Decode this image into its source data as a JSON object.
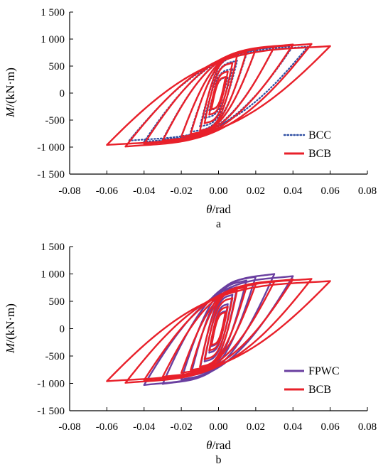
{
  "chart_data": [
    {
      "panel_label": "a",
      "type": "line",
      "xlabel_var": "θ",
      "xlabel_unit": "/rad",
      "ylabel_var": "M",
      "ylabel_unit": "/(kN·m)",
      "xlim": [
        -0.08,
        0.08
      ],
      "ylim": [
        -1500,
        1500
      ],
      "x_ticks": [
        -0.08,
        -0.06,
        -0.04,
        -0.02,
        0.0,
        0.02,
        0.04,
        0.06,
        0.08
      ],
      "x_tick_labels": [
        "-0.08",
        "-0.06",
        "-0.04",
        "-0.02",
        "0.00",
        "0.02",
        "0.04",
        "0.06",
        "0.08"
      ],
      "y_ticks": [
        1500,
        1000,
        500,
        0,
        -500,
        -1000,
        -1500
      ],
      "y_tick_labels": [
        "1 500",
        "1 000",
        "500",
        "0",
        "-500",
        "-1 000",
        "-1 500"
      ],
      "grid": false,
      "legend_position": "bottom-right",
      "series": [
        {
          "name": "BCC",
          "style": "dotted",
          "color": "#2f4fa3",
          "loops": [
            {
              "amp": 0.005,
              "m_pos": 300,
              "m_neg": -320
            },
            {
              "amp": 0.0075,
              "m_pos": 450,
              "m_neg": -460
            },
            {
              "amp": 0.01,
              "m_pos": 600,
              "m_neg": -620
            },
            {
              "amp": 0.015,
              "m_pos": 720,
              "m_neg": -720
            },
            {
              "amp": 0.02,
              "m_pos": 800,
              "m_neg": -800
            },
            {
              "amp": 0.03,
              "m_pos": 850,
              "m_neg": -860
            },
            {
              "amp": 0.04,
              "m_pos": 870,
              "m_neg": -900
            },
            {
              "amp": 0.048,
              "m_pos": 860,
              "m_neg": -880
            }
          ]
        },
        {
          "name": "BCB",
          "style": "solid",
          "color": "#e8202a",
          "loops": [
            {
              "amp": 0.0038,
              "m_pos": 300,
              "m_neg": -300
            },
            {
              "amp": 0.005,
              "m_pos": 400,
              "m_neg": -400
            },
            {
              "amp": 0.0075,
              "m_pos": 560,
              "m_neg": -560
            },
            {
              "amp": 0.01,
              "m_pos": 700,
              "m_neg": -700
            },
            {
              "amp": 0.015,
              "m_pos": 760,
              "m_neg": -760
            },
            {
              "amp": 0.02,
              "m_pos": 810,
              "m_neg": -810
            },
            {
              "amp": 0.03,
              "m_pos": 860,
              "m_neg": -880
            },
            {
              "amp": 0.04,
              "m_pos": 900,
              "m_neg": -940
            },
            {
              "amp": 0.05,
              "m_pos": 910,
              "m_neg": -990
            },
            {
              "amp": 0.06,
              "m_pos": 870,
              "m_neg": -960
            }
          ]
        }
      ]
    },
    {
      "panel_label": "b",
      "type": "line",
      "xlabel_var": "θ",
      "xlabel_unit": "/rad",
      "ylabel_var": "M",
      "ylabel_unit": "/(kN·m)",
      "xlim": [
        -0.08,
        0.08
      ],
      "ylim": [
        -1500,
        1500
      ],
      "x_ticks": [
        -0.08,
        -0.06,
        -0.04,
        -0.02,
        0.0,
        0.02,
        0.04,
        0.06,
        0.08
      ],
      "x_tick_labels": [
        "-0.08",
        "-0.06",
        "-0.04",
        "-0.02",
        "0.00",
        "0.02",
        "0.04",
        "0.06",
        "0.08"
      ],
      "y_ticks": [
        1500,
        1000,
        500,
        0,
        -500,
        -1000,
        -1500
      ],
      "y_tick_labels": [
        "1 500",
        "1 000",
        "500",
        "0",
        "-500",
        "-1 000",
        "-1 500"
      ],
      "grid": false,
      "legend_position": "bottom-right",
      "series": [
        {
          "name": "FPWC",
          "style": "solid",
          "color": "#6a3fa0",
          "loops": [
            {
              "amp": 0.0038,
              "m_pos": 320,
              "m_neg": -320
            },
            {
              "amp": 0.005,
              "m_pos": 450,
              "m_neg": -440
            },
            {
              "amp": 0.0075,
              "m_pos": 620,
              "m_neg": -600
            },
            {
              "amp": 0.01,
              "m_pos": 760,
              "m_neg": -740
            },
            {
              "amp": 0.015,
              "m_pos": 880,
              "m_neg": -860
            },
            {
              "amp": 0.02,
              "m_pos": 950,
              "m_neg": -930
            },
            {
              "amp": 0.03,
              "m_pos": 1000,
              "m_neg": -1010
            },
            {
              "amp": 0.04,
              "m_pos": 960,
              "m_neg": -1030
            }
          ]
        },
        {
          "name": "BCB",
          "style": "solid",
          "color": "#e8202a",
          "loops": [
            {
              "amp": 0.0038,
              "m_pos": 300,
              "m_neg": -300
            },
            {
              "amp": 0.005,
              "m_pos": 400,
              "m_neg": -400
            },
            {
              "amp": 0.0075,
              "m_pos": 560,
              "m_neg": -560
            },
            {
              "amp": 0.01,
              "m_pos": 700,
              "m_neg": -700
            },
            {
              "amp": 0.015,
              "m_pos": 760,
              "m_neg": -760
            },
            {
              "amp": 0.02,
              "m_pos": 810,
              "m_neg": -810
            },
            {
              "amp": 0.03,
              "m_pos": 860,
              "m_neg": -880
            },
            {
              "amp": 0.04,
              "m_pos": 900,
              "m_neg": -940
            },
            {
              "amp": 0.05,
              "m_pos": 910,
              "m_neg": -990
            },
            {
              "amp": 0.06,
              "m_pos": 870,
              "m_neg": -960
            }
          ]
        }
      ]
    }
  ]
}
